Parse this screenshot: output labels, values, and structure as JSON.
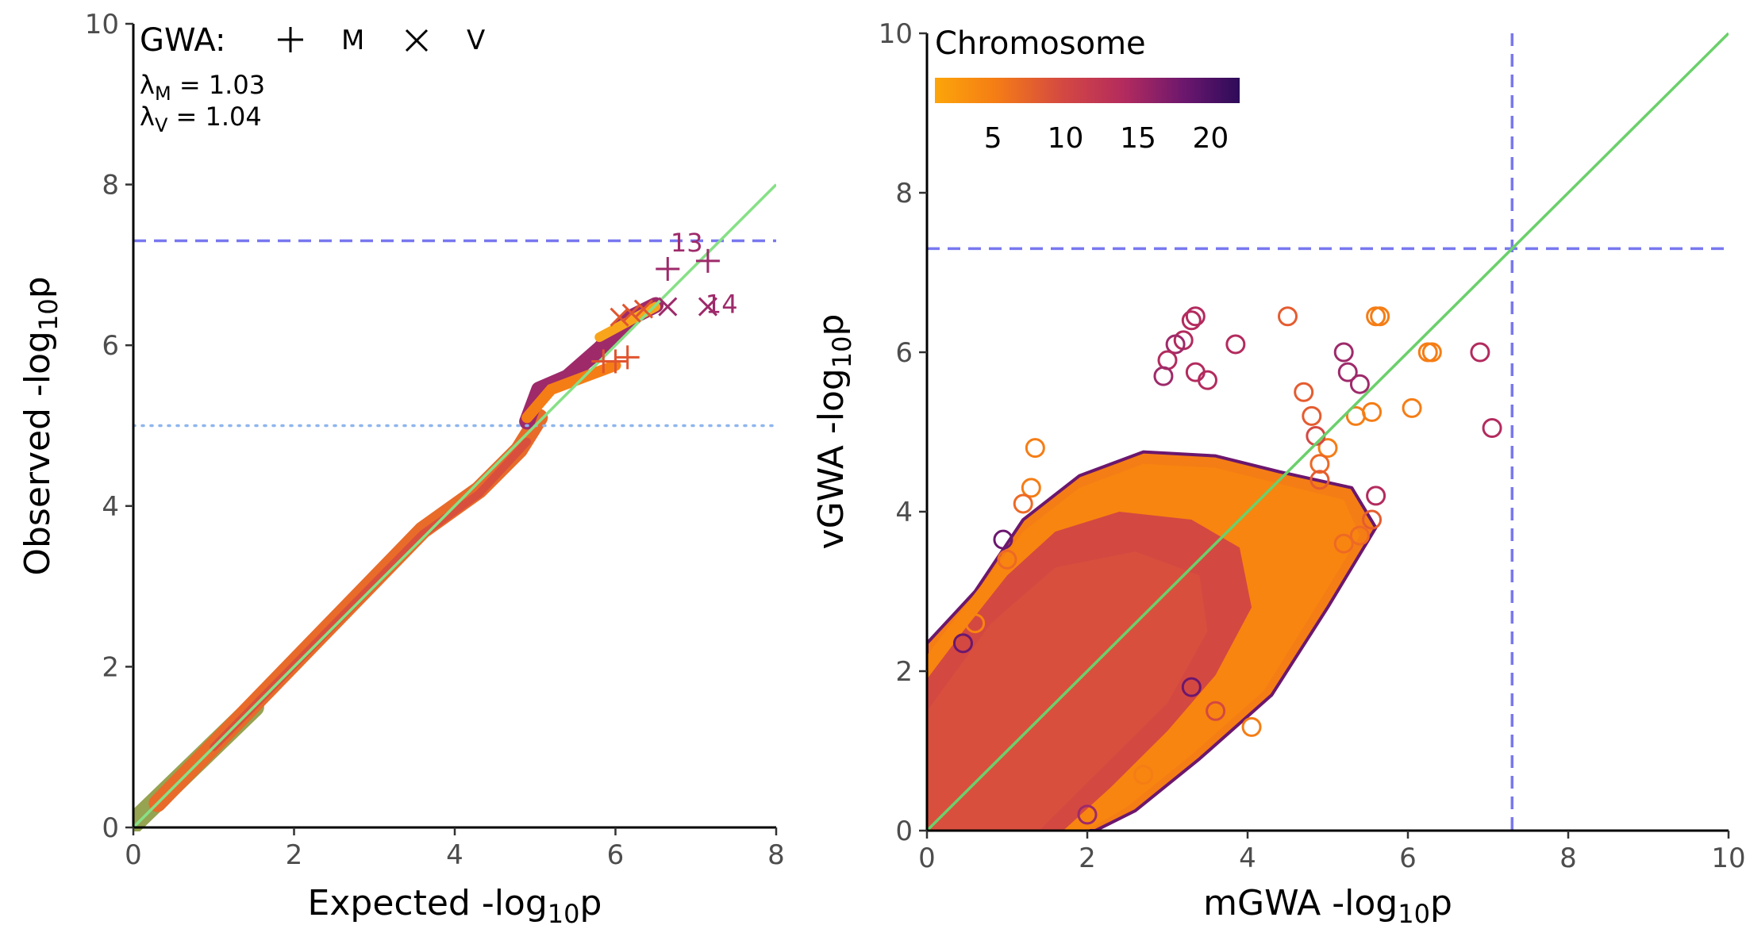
{
  "colors": {
    "diagonal": "#6bd06b",
    "threshold": "#7878f0",
    "suggestive": "#8fb6ee",
    "axis": "#000000",
    "low_chrom": "#f8a51c",
    "mid_chrom": "#d44a42",
    "high_chrom": "#340a68",
    "annot": "#9e2a6a"
  },
  "chart_data": [
    {
      "type": "scatter",
      "xlabel": "Expected -log",
      "xlabel_sub": "10",
      "xlabel_suffix": "p",
      "ylabel": "Observed -log",
      "ylabel_sub": "10",
      "ylabel_suffix": "p",
      "xlim": [
        0,
        8
      ],
      "ylim": [
        0,
        10
      ],
      "xticks": [
        "0",
        "2",
        "4",
        "6",
        "8"
      ],
      "yticks": [
        "0",
        "2",
        "4",
        "6",
        "8",
        "10"
      ],
      "legend": {
        "title": "GWA:",
        "placement": "top-left",
        "items": [
          {
            "label": "M",
            "marker": "plus"
          },
          {
            "label": "V",
            "marker": "cross"
          }
        ]
      },
      "lambda_m": {
        "symbol": "λ",
        "sub": "M",
        "text": " = 1.03"
      },
      "lambda_v": {
        "symbol": "λ",
        "sub": "V",
        "text": " = 1.04"
      },
      "genome_wide_threshold": 7.3,
      "suggestive_threshold": 5,
      "reference_line": "y = x",
      "annotations": [
        {
          "text": "13",
          "x": 7.1,
          "y": 7.05
        },
        {
          "text": "14",
          "x": 7.1,
          "y": 6.5
        }
      ],
      "series": [
        {
          "name": "M",
          "marker": "plus",
          "points": [
            [
              6.65,
              6.95
            ],
            [
              7.15,
              7.05
            ],
            [
              6.15,
              5.85
            ],
            [
              6.0,
              5.8
            ],
            [
              5.85,
              5.8
            ]
          ]
        },
        {
          "name": "V",
          "marker": "cross",
          "points": [
            [
              7.15,
              6.48
            ],
            [
              6.65,
              6.48
            ],
            [
              6.35,
              6.45
            ],
            [
              6.2,
              6.4
            ],
            [
              6.05,
              6.35
            ]
          ]
        }
      ]
    },
    {
      "type": "scatter",
      "xlabel": "mGWA -log",
      "xlabel_sub": "10",
      "xlabel_suffix": "p",
      "ylabel": "vGWA -log",
      "ylabel_sub": "10",
      "ylabel_suffix": "p",
      "xlim": [
        0,
        10
      ],
      "ylim": [
        0,
        10
      ],
      "xticks": [
        "0",
        "2",
        "4",
        "6",
        "8",
        "10"
      ],
      "yticks": [
        "0",
        "2",
        "4",
        "6",
        "8",
        "10"
      ],
      "colorbar": {
        "title": "Chromosome",
        "range": [
          1,
          22
        ],
        "ticks": [
          "5",
          "10",
          "15",
          "20"
        ],
        "placement": "top-left"
      },
      "threshold_x": 7.3,
      "threshold_y": 7.3,
      "reference_line": "y = x",
      "marker": "open-circle",
      "points": [
        [
          7.05,
          5.05,
          15
        ],
        [
          6.9,
          6.0,
          15
        ],
        [
          6.3,
          6.0,
          6
        ],
        [
          6.25,
          6.0,
          5
        ],
        [
          6.05,
          5.3,
          6
        ],
        [
          5.65,
          6.45,
          6
        ],
        [
          5.6,
          6.45,
          5
        ],
        [
          4.5,
          6.45,
          10
        ],
        [
          3.35,
          6.45,
          15
        ],
        [
          3.3,
          6.4,
          16
        ],
        [
          3.2,
          6.15,
          16
        ],
        [
          3.1,
          6.1,
          17
        ],
        [
          3.0,
          5.9,
          16
        ],
        [
          2.95,
          5.7,
          17
        ],
        [
          3.5,
          5.65,
          16
        ],
        [
          3.35,
          5.75,
          15
        ],
        [
          3.85,
          6.1,
          16
        ],
        [
          5.2,
          6.0,
          17
        ],
        [
          5.25,
          5.75,
          18
        ],
        [
          5.4,
          5.6,
          18
        ],
        [
          5.55,
          5.25,
          6
        ],
        [
          5.35,
          5.2,
          5
        ],
        [
          5.0,
          4.8,
          6
        ],
        [
          4.9,
          4.6,
          7
        ],
        [
          5.6,
          4.2,
          15
        ],
        [
          5.55,
          3.9,
          9
        ],
        [
          5.4,
          3.7,
          8
        ],
        [
          5.2,
          3.6,
          7
        ],
        [
          4.7,
          5.5,
          10
        ],
        [
          4.8,
          5.2,
          9
        ],
        [
          4.85,
          4.95,
          12
        ],
        [
          4.9,
          4.4,
          10
        ],
        [
          1.35,
          4.8,
          5
        ],
        [
          1.3,
          4.3,
          6
        ],
        [
          0.95,
          3.65,
          20
        ],
        [
          1.0,
          3.4,
          8
        ],
        [
          1.2,
          4.1,
          7
        ],
        [
          4.05,
          1.3,
          5
        ],
        [
          3.6,
          1.5,
          12
        ],
        [
          3.3,
          1.8,
          20
        ],
        [
          2.7,
          0.7,
          5
        ],
        [
          2.0,
          0.2,
          18
        ],
        [
          0.6,
          2.6,
          4
        ],
        [
          0.45,
          2.35,
          20
        ]
      ]
    }
  ]
}
